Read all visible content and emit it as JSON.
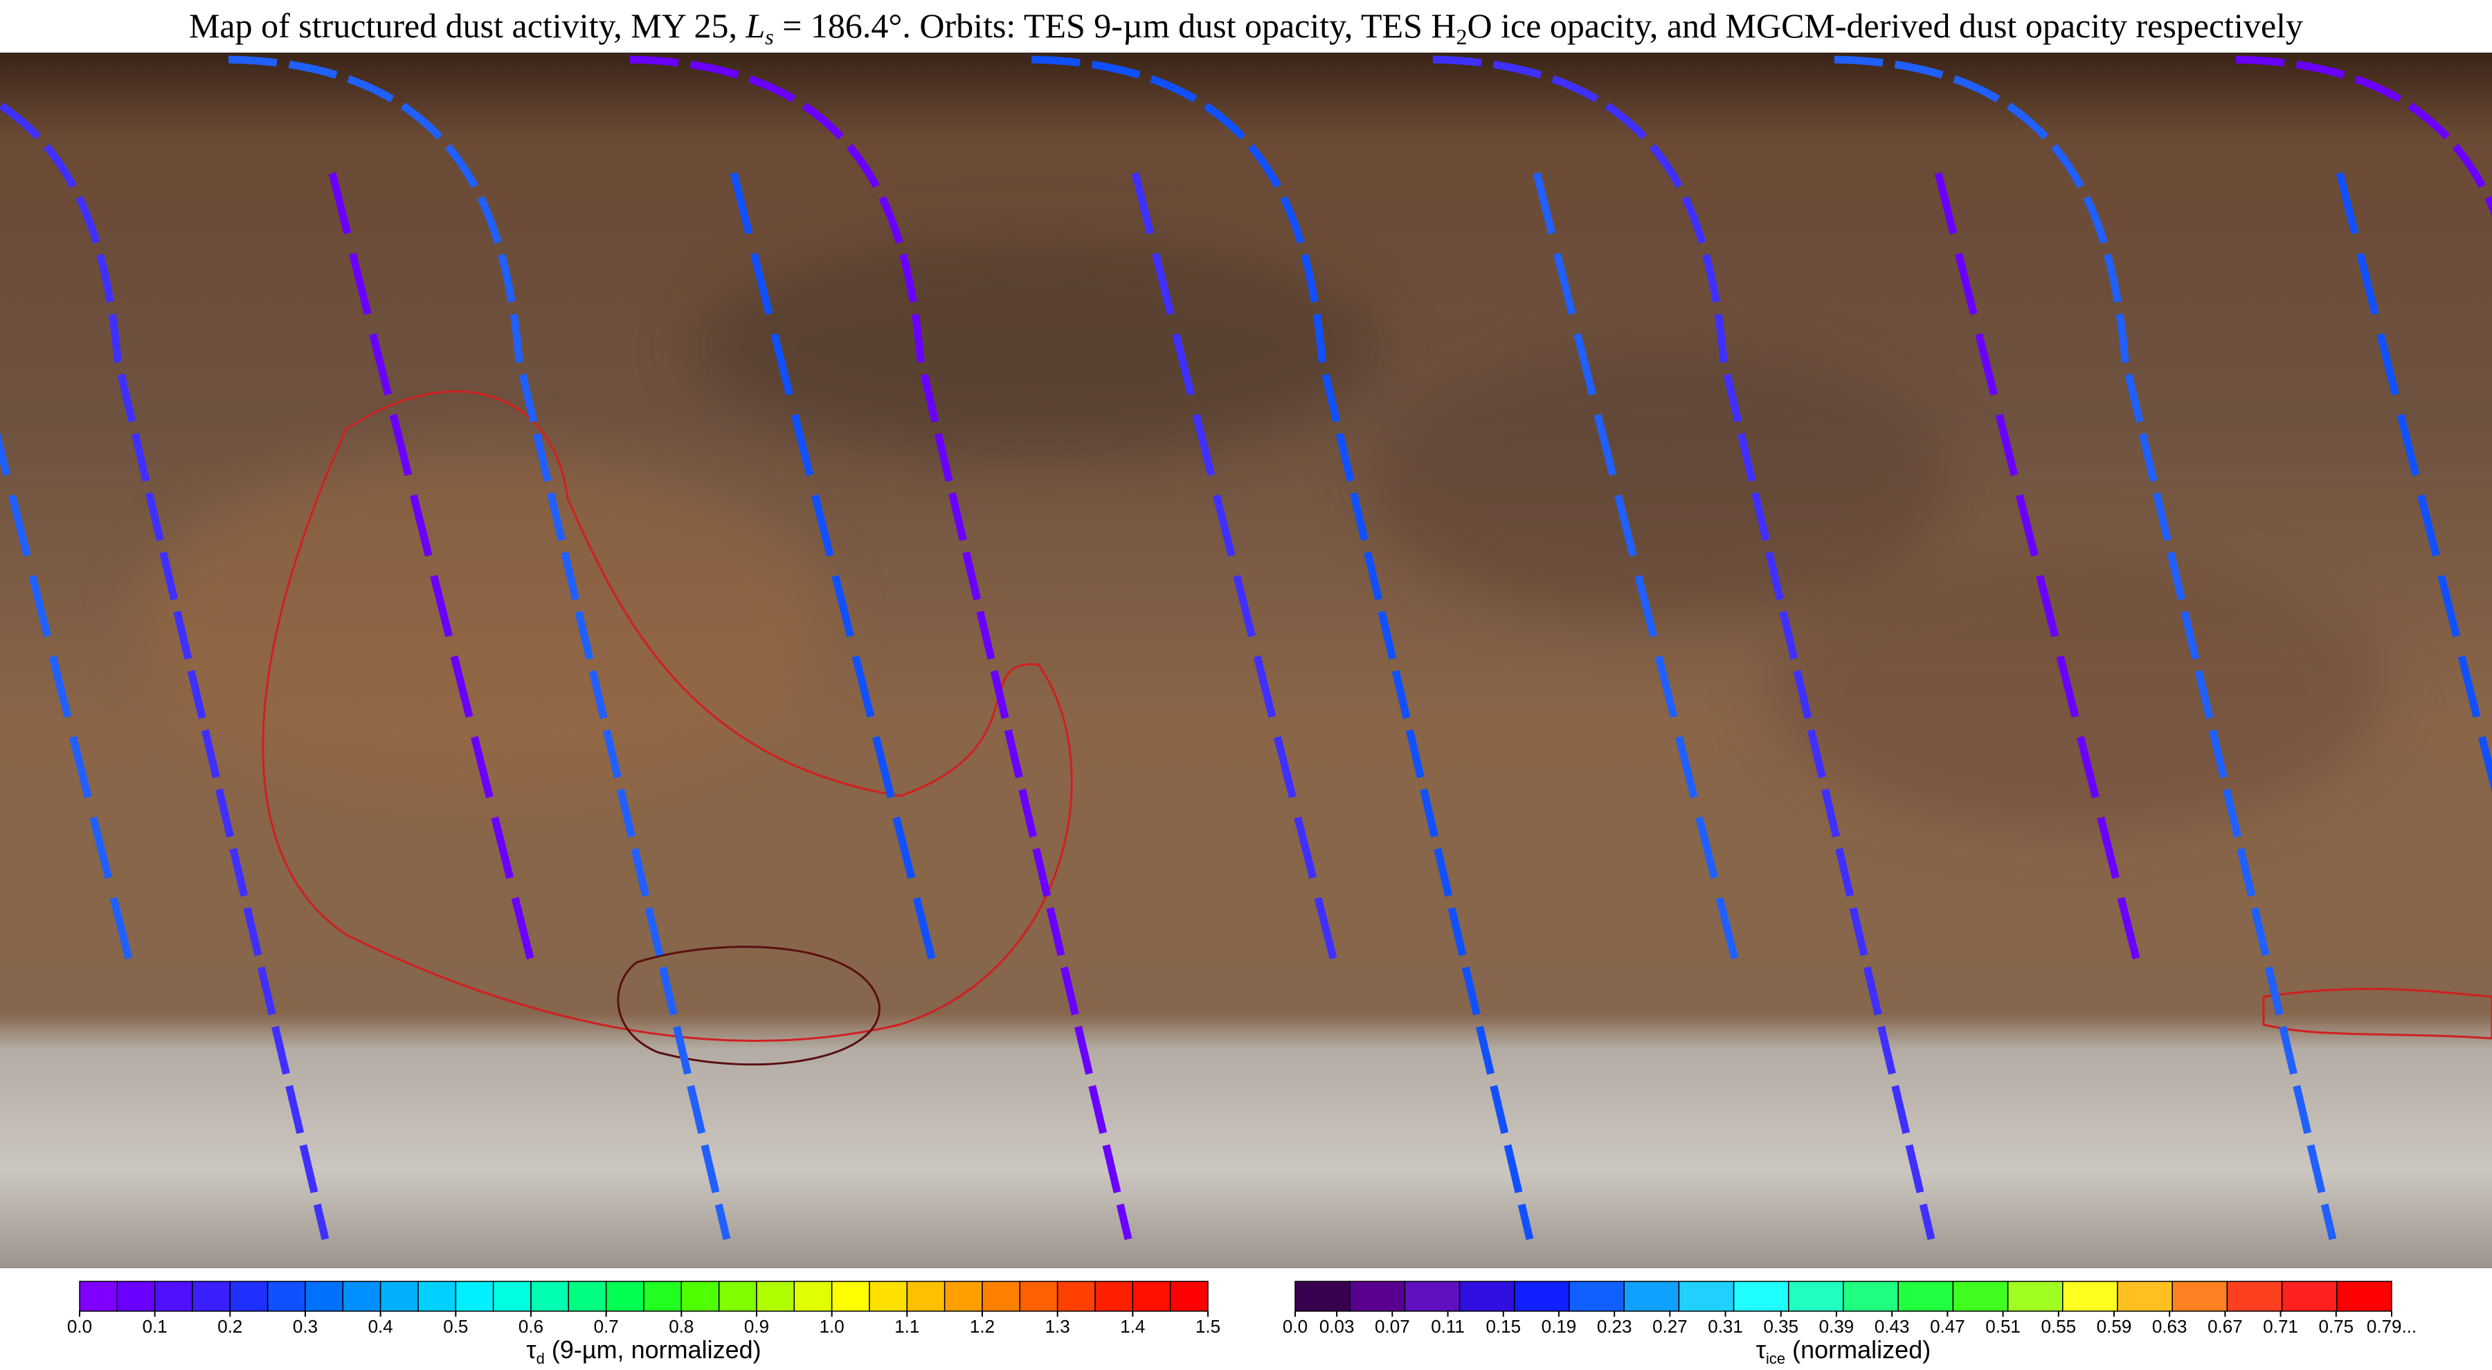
{
  "title_parts": [
    "Map of structured dust activity, MY 25, ",
    "L",
    "s",
    " = 186.4°. Orbits: TES 9-µm dust opacity, TES H",
    "2",
    "O ice opacity, and MGCM-derived dust opacity respectively"
  ],
  "colorbars": [
    {
      "label_parts": [
        "τ",
        "d",
        " (9-µm, normalized)"
      ],
      "lim": [
        0,
        1.5
      ],
      "ticks": [
        {
          "value": 0,
          "label": "0.0"
        },
        0.1,
        0.2,
        0.3,
        0.4,
        0.5,
        0.6,
        0.7,
        0.8,
        0.9,
        {
          "value": 1,
          "label": "1.0"
        },
        1.1,
        1.2,
        1.3,
        1.4,
        1.5
      ],
      "colors": [
        "#8000ff",
        "#6a00ff",
        "#5010ff",
        "#3a20ff",
        "#2030ff",
        "#1050ff",
        "#0070ff",
        "#0090ff",
        "#00b0ff",
        "#00d0ff",
        "#00f0ff",
        "#00ffe0",
        "#00ffb0",
        "#00ff80",
        "#00ff50",
        "#20ff20",
        "#50ff00",
        "#80ff00",
        "#b0ff00",
        "#e0ff00",
        "#ffff00",
        "#ffe000",
        "#ffc000",
        "#ffa000",
        "#ff8000",
        "#ff6000",
        "#ff4000",
        "#ff2000",
        "#ff1000",
        "#ff0000"
      ]
    },
    {
      "label_parts": [
        "τ",
        "ice",
        " (normalized)"
      ],
      "lim": [
        0,
        0.79
      ],
      "ticks": [
        {
          "value": 0,
          "label": "0.0"
        },
        0.03,
        0.07,
        0.11,
        0.15,
        0.19,
        0.23,
        0.27,
        0.31,
        0.35,
        0.39,
        0.43,
        0.47,
        0.51,
        0.55,
        0.59,
        0.63,
        0.67,
        0.71,
        0.75,
        {
          "value": 0.79,
          "label": "0.79..."
        }
      ],
      "colors": [
        "#3a0050",
        "#5a0090",
        "#6010c0",
        "#3010e0",
        "#1020ff",
        "#1060ff",
        "#10a0ff",
        "#20d0ff",
        "#20ffff",
        "#20ffc0",
        "#20ff80",
        "#20ff40",
        "#40ff20",
        "#a0ff20",
        "#ffff20",
        "#ffc020",
        "#ff8020",
        "#ff4020",
        "#ff2020",
        "#ff0000"
      ]
    }
  ]
}
